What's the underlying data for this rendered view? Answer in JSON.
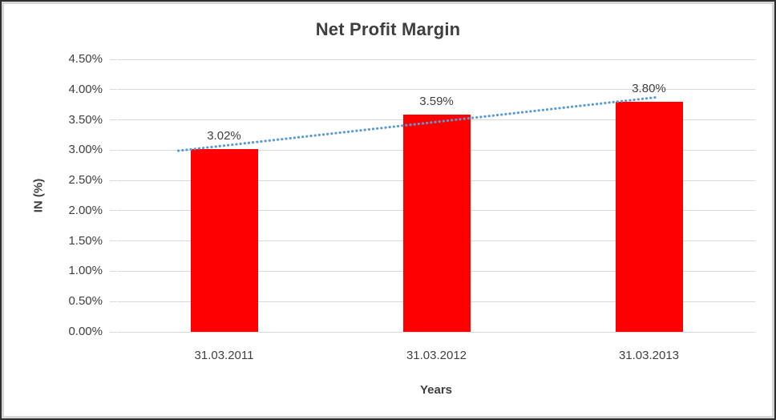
{
  "window": {
    "background": "#ffffff",
    "frame_outer_color": "#2e2e2e",
    "frame_inner_color": "#d5d5d5"
  },
  "chart_data": {
    "type": "bar",
    "title": "Net Profit Margin",
    "categories": [
      "31.03.2011",
      "31.03.2012",
      "31.03.2013"
    ],
    "values": [
      3.02,
      3.59,
      3.8
    ],
    "data_labels": [
      "3.02%",
      "3.59%",
      "3.80%"
    ],
    "xlabel": "Years",
    "ylabel": "IN (%)",
    "ylim": [
      0,
      4.5
    ],
    "ytick_labels": [
      "0.00%",
      "0.50%",
      "1.00%",
      "1.50%",
      "2.00%",
      "2.50%",
      "3.00%",
      "3.50%",
      "4.00%",
      "4.50%"
    ],
    "grid": true,
    "legend": "none",
    "bar_color": "#FF0000",
    "gridline_color": "#D9D9D9",
    "text_color": "#404040",
    "trendline": {
      "style": "dotted",
      "color": "#5B9BD5",
      "start_frac": 0.095,
      "start_value": 2.99,
      "end_frac": 0.843,
      "end_value": 3.87
    }
  }
}
